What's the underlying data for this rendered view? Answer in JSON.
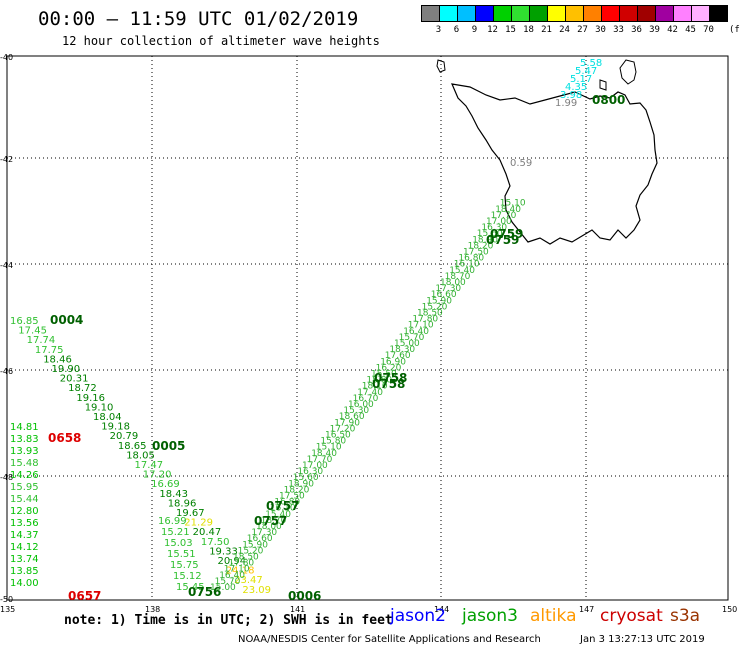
{
  "title": "00:00 – 11:59 UTC 01/02/2019",
  "subtitle": "12 hour collection of altimeter wave heights",
  "scale": {
    "unit": "(ft)",
    "colors": [
      "#7f7f7f",
      "#00ffff",
      "#00bfff",
      "#0000ff",
      "#00d000",
      "#30e030",
      "#00a000",
      "#ffff00",
      "#ffc000",
      "#ff8000",
      "#ff0000",
      "#d00000",
      "#a00000",
      "#a000a0",
      "#ff80ff",
      "#ffb0ff",
      "#000000"
    ],
    "labels": [
      "3",
      "6",
      "9",
      "12",
      "15",
      "18",
      "21",
      "24",
      "27",
      "30",
      "33",
      "36",
      "39",
      "42",
      "45",
      "70"
    ]
  },
  "axes": {
    "lat_labels": [
      "-40",
      "-42",
      "-44",
      "-46",
      "-48",
      "-50"
    ],
    "lon_labels": [
      "135",
      "138",
      "141",
      "144",
      "147",
      "150"
    ]
  },
  "footer": {
    "note": "note:  1) Time is in UTC;  2) SWH is in feet",
    "satellites": [
      {
        "name": "jason2",
        "color": "#0000ff"
      },
      {
        "name": "jason3",
        "color": "#00a000"
      },
      {
        "name": "altika",
        "color": "#ff9900"
      },
      {
        "name": "cryosat",
        "color": "#cc0000"
      },
      {
        "name": "s3a",
        "color": "#993300"
      }
    ],
    "credit": "NOAA/NESDIS Center for Satellite Applications and Research",
    "stamp": "Jan  3 13:27:13 UTC 2019"
  },
  "track_a": {
    "time_top": "0004",
    "time_mid": "0005",
    "values": [
      "16.85",
      "17.45",
      "17.74",
      "17.75",
      "18.46",
      "19.90",
      "20.31",
      "18.72",
      "19.16",
      "19.10",
      "18.04",
      "19.18",
      "20.79",
      "18.65",
      "18.05",
      "17.47",
      "17.20",
      "16.69",
      "18.43",
      "18.96",
      "19.67",
      "21.29",
      "20.47",
      "17.50",
      "19.33",
      "20.94",
      "24.18",
      "23.47",
      "23.09"
    ],
    "time_end": "0006"
  },
  "track_b": {
    "time_a": "0658",
    "time_b": "0657",
    "values": [
      "14.81",
      "13.83",
      "13.93",
      "15.48",
      "14.26",
      "15.95",
      "15.44",
      "12.80",
      "13.56",
      "14.37",
      "14.12",
      "13.74",
      "13.85",
      "14.00"
    ]
  },
  "track_c": {
    "values": [
      "16.99",
      "15.21",
      "15.03",
      "15.51",
      "15.75",
      "15.12",
      "15.45"
    ],
    "time_a": "0756",
    "time_b": "0757",
    "time_c": "0757",
    "time_d": "0758",
    "time_e": "0758",
    "time_f": "0759",
    "time_g": "0759"
  },
  "track_d": {
    "values": [
      "5.58",
      "5.47",
      "5.17",
      "4.35",
      "3.98",
      "1.99"
    ],
    "time": "0800",
    "label_top": "0.59"
  }
}
